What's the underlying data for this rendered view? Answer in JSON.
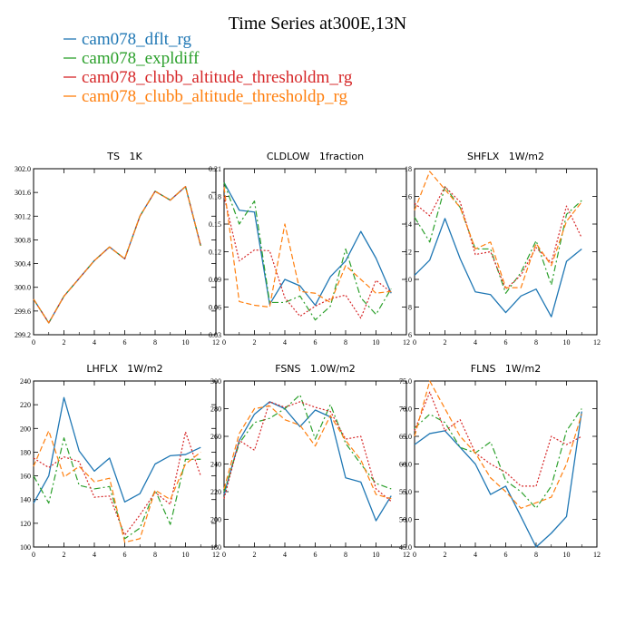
{
  "title": "Time Series at300E,13N",
  "legend": [
    {
      "label": "cam078_dflt_rg",
      "color": "#1f77b4"
    },
    {
      "label": "cam078_expldiff",
      "color": "#2ca02c"
    },
    {
      "label": "cam078_clubb_altitude_thresholdm_rg",
      "color": "#d62728"
    },
    {
      "label": "cam078_clubb_altitude_thresholdp_rg",
      "color": "#ff7f0e"
    }
  ],
  "chart_data": [
    {
      "type": "line",
      "title": "TS   1K",
      "x": [
        0,
        1,
        2,
        3,
        4,
        5,
        6,
        7,
        8,
        9,
        10,
        11
      ],
      "xlim": [
        0,
        12
      ],
      "ylim": [
        299.2,
        302.0
      ],
      "xticks": [
        0,
        2,
        4,
        6,
        8,
        10,
        12
      ],
      "yticks": [
        299.2,
        299.6,
        300.0,
        300.4,
        300.8,
        301.2,
        301.6,
        302.0
      ],
      "ytick_decimals": 1,
      "series": [
        {
          "name": "cam078_dflt_rg",
          "values": [
            299.8,
            299.4,
            299.85,
            300.15,
            300.45,
            300.68,
            300.48,
            301.2,
            301.62,
            301.47,
            301.7,
            300.7
          ]
        },
        {
          "name": "cam078_expldiff",
          "values": [
            299.8,
            299.4,
            299.85,
            300.15,
            300.45,
            300.68,
            300.48,
            301.2,
            301.62,
            301.47,
            301.7,
            300.7
          ]
        },
        {
          "name": "cam078_clubb_altitude_thresholdm_rg",
          "values": [
            299.8,
            299.4,
            299.85,
            300.15,
            300.45,
            300.68,
            300.48,
            301.2,
            301.62,
            301.47,
            301.7,
            300.7
          ]
        },
        {
          "name": "cam078_clubb_altitude_thresholdp_rg",
          "values": [
            299.8,
            299.4,
            299.85,
            300.15,
            300.45,
            300.68,
            300.48,
            301.2,
            301.62,
            301.47,
            301.7,
            300.7
          ]
        }
      ]
    },
    {
      "type": "line",
      "title": "CLDLOW   1fraction",
      "x": [
        0,
        1,
        2,
        3,
        4,
        5,
        6,
        7,
        8,
        9,
        10,
        11
      ],
      "xlim": [
        0,
        12
      ],
      "ylim": [
        0.03,
        0.21
      ],
      "xticks": [
        0,
        2,
        4,
        6,
        8,
        10,
        12
      ],
      "yticks": [
        0.03,
        0.06,
        0.09,
        0.12,
        0.15,
        0.18,
        0.21
      ],
      "ytick_decimals": 2,
      "series": [
        {
          "name": "cam078_dflt_rg",
          "values": [
            0.195,
            0.165,
            0.163,
            0.063,
            0.09,
            0.083,
            0.062,
            0.093,
            0.11,
            0.142,
            0.113,
            0.075
          ]
        },
        {
          "name": "cam078_expldiff",
          "values": [
            0.195,
            0.15,
            0.175,
            0.065,
            0.065,
            0.072,
            0.046,
            0.061,
            0.123,
            0.07,
            0.052,
            0.08
          ]
        },
        {
          "name": "cam078_clubb_altitude_thresholdm_rg",
          "values": [
            0.18,
            0.11,
            0.122,
            0.121,
            0.07,
            0.05,
            0.061,
            0.069,
            0.073,
            0.048,
            0.089,
            0.076
          ]
        },
        {
          "name": "cam078_clubb_altitude_thresholdp_rg",
          "values": [
            0.19,
            0.066,
            0.062,
            0.06,
            0.15,
            0.077,
            0.075,
            0.065,
            0.105,
            0.09,
            0.075,
            0.077
          ]
        }
      ]
    },
    {
      "type": "line",
      "title": "SHFLX   1W/m2",
      "x": [
        0,
        1,
        2,
        3,
        4,
        5,
        6,
        7,
        8,
        9,
        10,
        11
      ],
      "xlim": [
        0,
        12
      ],
      "ylim": [
        6,
        18
      ],
      "xticks": [
        0,
        2,
        4,
        6,
        8,
        10,
        12
      ],
      "yticks": [
        6,
        8,
        10,
        12,
        14,
        16,
        18
      ],
      "ytick_decimals": 0,
      "series": [
        {
          "name": "cam078_dflt_rg",
          "values": [
            10.3,
            11.4,
            14.4,
            11.5,
            9.1,
            8.9,
            7.6,
            8.8,
            9.3,
            7.3,
            11.3,
            12.2
          ]
        },
        {
          "name": "cam078_expldiff",
          "values": [
            14.5,
            12.7,
            16.7,
            15.2,
            12.2,
            12.2,
            9.0,
            10.5,
            12.8,
            9.6,
            14.7,
            15.7
          ]
        },
        {
          "name": "cam078_clubb_altitude_thresholdm_rg",
          "values": [
            15.5,
            14.6,
            16.7,
            15.6,
            11.8,
            12.0,
            9.3,
            10.3,
            12.3,
            11.2,
            15.3,
            13.0
          ]
        },
        {
          "name": "cam078_clubb_altitude_thresholdp_rg",
          "values": [
            15.0,
            17.8,
            16.5,
            15.2,
            12.2,
            12.7,
            9.4,
            9.4,
            12.6,
            11.0,
            14.2,
            15.6
          ]
        }
      ]
    },
    {
      "type": "line",
      "title": "LHFLX   1W/m2",
      "x": [
        0,
        1,
        2,
        3,
        4,
        5,
        6,
        7,
        8,
        9,
        10,
        11
      ],
      "xlim": [
        0,
        12
      ],
      "ylim": [
        100,
        240
      ],
      "xticks": [
        0,
        2,
        4,
        6,
        8,
        10,
        12
      ],
      "yticks": [
        100,
        120,
        140,
        160,
        180,
        200,
        220,
        240
      ],
      "ytick_decimals": 0,
      "series": [
        {
          "name": "cam078_dflt_rg",
          "values": [
            137,
            160,
            226,
            181,
            164,
            175,
            138,
            145,
            170,
            177,
            178,
            184
          ]
        },
        {
          "name": "cam078_expldiff",
          "values": [
            160,
            137,
            192,
            152,
            149,
            151,
            107,
            116,
            148,
            119,
            174,
            174
          ]
        },
        {
          "name": "cam078_clubb_altitude_thresholdm_rg",
          "values": [
            175,
            167,
            176,
            172,
            142,
            143,
            110,
            127,
            146,
            136,
            197,
            160
          ]
        },
        {
          "name": "cam078_clubb_altitude_thresholdp_rg",
          "values": [
            168,
            198,
            159,
            168,
            155,
            158,
            104,
            107,
            148,
            140,
            170,
            180
          ]
        }
      ]
    },
    {
      "type": "line",
      "title": "FSNS   1.0W/m2",
      "x": [
        0,
        1,
        2,
        3,
        4,
        5,
        6,
        7,
        8,
        9,
        10,
        11
      ],
      "xlim": [
        0,
        12
      ],
      "ylim": [
        180,
        300
      ],
      "xticks": [
        0,
        2,
        4,
        6,
        8,
        10,
        12
      ],
      "yticks": [
        180,
        200,
        220,
        240,
        260,
        280,
        300
      ],
      "ytick_decimals": 0,
      "series": [
        {
          "name": "cam078_dflt_rg",
          "values": [
            218,
            257,
            276,
            285,
            280,
            267,
            279,
            274,
            230,
            227,
            199,
            217
          ]
        },
        {
          "name": "cam078_expldiff",
          "values": [
            220,
            255,
            270,
            273,
            280,
            290,
            258,
            283,
            255,
            240,
            226,
            222
          ]
        },
        {
          "name": "cam078_clubb_altitude_thresholdm_rg",
          "values": [
            215,
            257,
            250,
            285,
            281,
            285,
            281,
            278,
            258,
            260,
            222,
            213
          ]
        },
        {
          "name": "cam078_clubb_altitude_thresholdp_rg",
          "values": [
            222,
            262,
            280,
            282,
            272,
            268,
            253,
            275,
            257,
            243,
            218,
            215
          ]
        }
      ]
    },
    {
      "type": "line",
      "title": "FLNS   1W/m2",
      "x": [
        0,
        1,
        2,
        3,
        4,
        5,
        6,
        7,
        8,
        9,
        10,
        11
      ],
      "xlim": [
        0,
        12
      ],
      "ylim": [
        45.0,
        75.0
      ],
      "xticks": [
        0,
        2,
        4,
        6,
        8,
        10,
        12
      ],
      "yticks": [
        45.0,
        50.0,
        55.0,
        60.0,
        65.0,
        70.0,
        75.0
      ],
      "ytick_decimals": 1,
      "series": [
        {
          "name": "cam078_dflt_rg",
          "values": [
            63.5,
            65.5,
            66.0,
            63.0,
            60.0,
            54.5,
            56.0,
            50.5,
            45.0,
            47.5,
            50.5,
            69.5
          ]
        },
        {
          "name": "cam078_expldiff",
          "values": [
            66.5,
            69.0,
            67.5,
            63.0,
            62.0,
            64.0,
            57.0,
            55.0,
            52.0,
            56.0,
            66.0,
            70.0
          ]
        },
        {
          "name": "cam078_clubb_altitude_thresholdm_rg",
          "values": [
            66.0,
            73.0,
            66.0,
            68.0,
            62.0,
            60.0,
            58.5,
            56.0,
            56.0,
            65.0,
            63.5,
            65.0
          ]
        },
        {
          "name": "cam078_clubb_altitude_thresholdp_rg",
          "values": [
            65.0,
            75.0,
            70.0,
            65.0,
            62.0,
            57.5,
            55.0,
            52.0,
            53.0,
            54.0,
            60.0,
            69.0
          ]
        }
      ]
    }
  ]
}
